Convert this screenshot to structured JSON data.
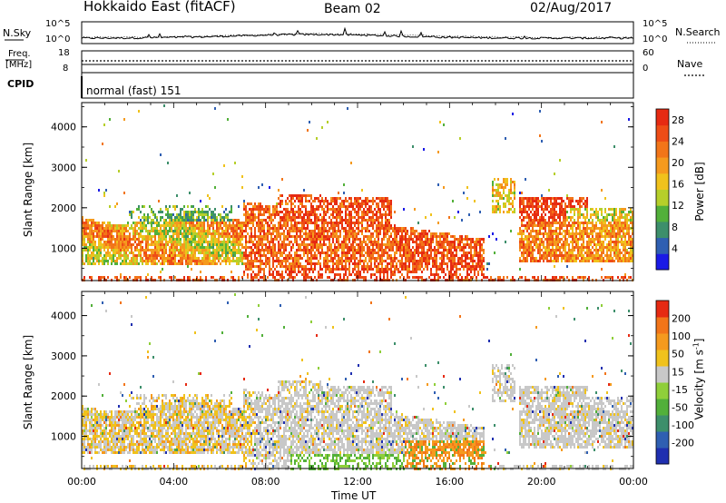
{
  "header": {
    "title": "Hokkaido East (fitACF)",
    "beam": "Beam 02",
    "date": "02/Aug/2017"
  },
  "noise_panel": {
    "left_label": "N.Sky",
    "right_label": "N.Search",
    "tick_high": "10^5",
    "tick_low": "10^0"
  },
  "freq_panel": {
    "left_label_line1": "Freq.",
    "left_label_line2": "[MHz]",
    "right_label": "Nave",
    "left_ticks": [
      "18",
      "8"
    ],
    "right_ticks": [
      "60",
      "0"
    ]
  },
  "cpid_panel": {
    "label": "CPID",
    "mode": "normal (fast) 151"
  },
  "chart_data": [
    {
      "type": "heatmap",
      "name": "power",
      "ylabel": "Slant Range [km]",
      "ylim": [
        200,
        4600
      ],
      "yticks": [
        1000,
        2000,
        3000,
        4000
      ],
      "xlim": [
        0,
        24
      ],
      "colorbar": {
        "label": "Power [dB]",
        "ticks": [
          "4",
          "8",
          "12",
          "16",
          "20",
          "24",
          "28"
        ],
        "range": [
          0,
          30
        ],
        "colors": [
          "#1a1ae6",
          "#2f5fb2",
          "#3d8f6b",
          "#52b03a",
          "#b6cf2a",
          "#f0c21c",
          "#f59a1e",
          "#f27519",
          "#ee4d16",
          "#e62a12"
        ]
      }
    },
    {
      "type": "heatmap",
      "name": "velocity",
      "ylabel": "Slant Range [km]",
      "ylim": [
        200,
        4600
      ],
      "yticks": [
        1000,
        2000,
        3000,
        4000
      ],
      "xlim": [
        0,
        24
      ],
      "colorbar": {
        "label": "Velocity [m s^-1]",
        "ticks": [
          "200",
          "100",
          "50",
          "15",
          "-15",
          "-50",
          "-100",
          "-200"
        ],
        "colors": [
          "#1f2fb0",
          "#2f5fb2",
          "#3d8f6b",
          "#52b03a",
          "#8fcf3a",
          "#c8c8c8",
          "#f0c21c",
          "#f59a1e",
          "#f27519",
          "#e62a12"
        ]
      }
    }
  ],
  "xaxis": {
    "label": "Time UT",
    "ticks": [
      "00:00",
      "04:00",
      "08:00",
      "12:00",
      "16:00",
      "20:00",
      "00:00"
    ]
  }
}
